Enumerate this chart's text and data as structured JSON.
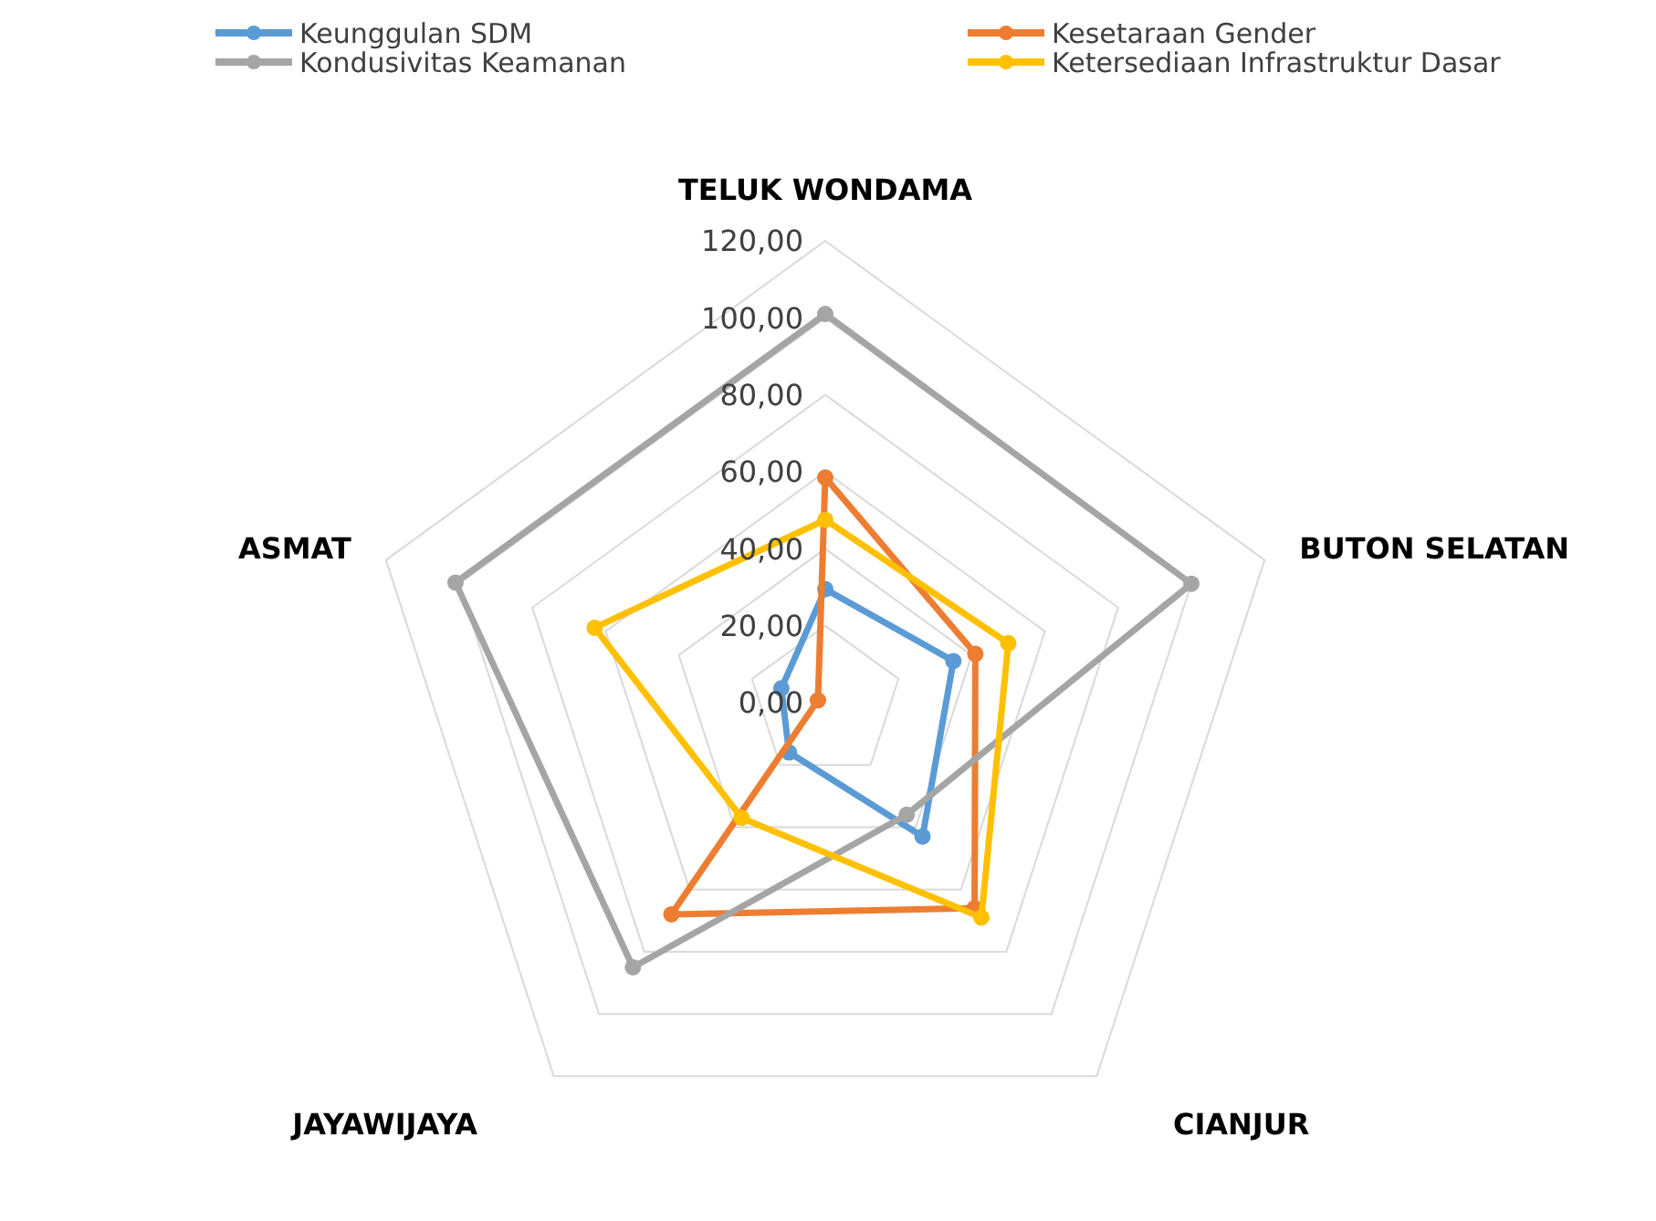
{
  "chart_data": {
    "type": "radar",
    "categories": [
      "TELUK WONDAMA",
      "BUTON SELATAN",
      "CIANJUR",
      "JAYAWIJAYA",
      "ASMAT"
    ],
    "series": [
      {
        "name": "Keunggulan SDM",
        "color": "#5b9bd5",
        "values": [
          29.5,
          35,
          43,
          16,
          12
        ]
      },
      {
        "name": "Kesetaraan Gender",
        "color": "#ed7d31",
        "values": [
          58.5,
          41,
          66,
          68,
          2
        ]
      },
      {
        "name": "Kondusivitas Keamanan",
        "color": "#a5a5a5",
        "values": [
          101,
          100,
          36,
          85,
          101
        ]
      },
      {
        "name": "Ketersediaan Infrastruktur Dasar",
        "color": "#ffc000",
        "values": [
          47.5,
          50,
          69,
          37,
          63
        ]
      }
    ],
    "ylim": [
      0,
      120
    ],
    "yticks": [
      {
        "value": 0,
        "label": "0,00"
      },
      {
        "value": 20,
        "label": "20,00"
      },
      {
        "value": 40,
        "label": "40,00"
      },
      {
        "value": 60,
        "label": "60,00"
      },
      {
        "value": 80,
        "label": "80,00"
      },
      {
        "value": 100,
        "label": "100,00"
      },
      {
        "value": 120,
        "label": "120,00"
      }
    ],
    "grid": true,
    "legend": "top",
    "marker": "circle",
    "line_style": "solid"
  }
}
